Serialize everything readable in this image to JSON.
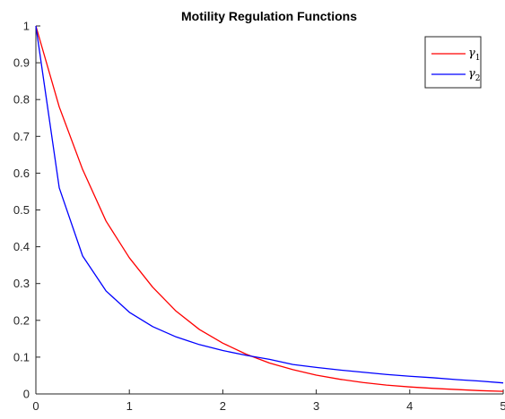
{
  "chart_data": {
    "type": "line",
    "title": "Motility Regulation Functions",
    "xlabel": "",
    "ylabel": "",
    "xlim": [
      0,
      5
    ],
    "ylim": [
      0,
      1
    ],
    "xticks": [
      "0",
      "1",
      "2",
      "3",
      "4",
      "5"
    ],
    "yticks": [
      "0",
      "0.1",
      "0.2",
      "0.3",
      "0.4",
      "0.5",
      "0.6",
      "0.7",
      "0.8",
      "0.9",
      "1"
    ],
    "grid": false,
    "legend_position": "top-right",
    "x": [
      0,
      0.25,
      0.5,
      0.75,
      1,
      1.25,
      1.5,
      1.75,
      2,
      2.25,
      2.5,
      2.75,
      3,
      3.25,
      3.5,
      3.75,
      4,
      4.25,
      4.5,
      4.75,
      5
    ],
    "series": [
      {
        "name": "γ",
        "subscript": "1",
        "color": "#ff0000",
        "values": [
          1.0,
          0.78,
          0.61,
          0.47,
          0.37,
          0.29,
          0.225,
          0.175,
          0.138,
          0.108,
          0.084,
          0.066,
          0.051,
          0.04,
          0.031,
          0.024,
          0.019,
          0.015,
          0.012,
          0.009,
          0.007
        ]
      },
      {
        "name": "γ",
        "subscript": "2",
        "color": "#0000ff",
        "values": [
          1.0,
          0.56,
          0.375,
          0.28,
          0.222,
          0.183,
          0.155,
          0.134,
          0.118,
          0.105,
          0.094,
          0.08,
          0.072,
          0.065,
          0.059,
          0.053,
          0.048,
          0.044,
          0.039,
          0.035,
          0.03
        ]
      }
    ]
  }
}
